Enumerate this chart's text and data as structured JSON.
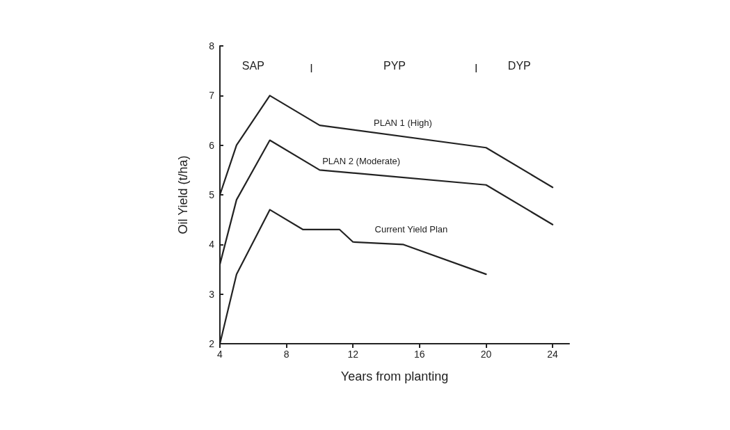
{
  "chart_data": {
    "type": "line",
    "xlabel": "Years from planting",
    "ylabel": "Oil Yield (t/ha)",
    "xlim": [
      4,
      25
    ],
    "xticks": [
      4,
      8,
      12,
      16,
      20,
      24
    ],
    "ylim": [
      2,
      8
    ],
    "yticks": [
      2,
      3,
      4,
      5,
      6,
      7,
      8
    ],
    "grid": false,
    "legend": false,
    "marker": "none",
    "line_style": "solid",
    "series": [
      {
        "name": "PLAN 1 (High)",
        "color": "#222222",
        "x": [
          4,
          5,
          7,
          10,
          20,
          24
        ],
        "values": [
          5.0,
          6.0,
          7.0,
          6.4,
          5.95,
          5.15
        ]
      },
      {
        "name": "PLAN 2 (Moderate)",
        "color": "#222222",
        "x": [
          4,
          5,
          7,
          10,
          20,
          24
        ],
        "values": [
          3.6,
          4.9,
          6.1,
          5.5,
          5.2,
          4.4
        ]
      },
      {
        "name": "Current Yield Plan",
        "color": "#222222",
        "x": [
          4,
          5,
          7,
          9,
          11.2,
          12,
          15,
          20
        ],
        "values": [
          2.0,
          3.4,
          4.7,
          4.3,
          4.3,
          4.05,
          4.0,
          3.4
        ]
      }
    ],
    "annotations": [
      "SAP",
      "I",
      "PYP",
      "I",
      "DYP"
    ]
  }
}
